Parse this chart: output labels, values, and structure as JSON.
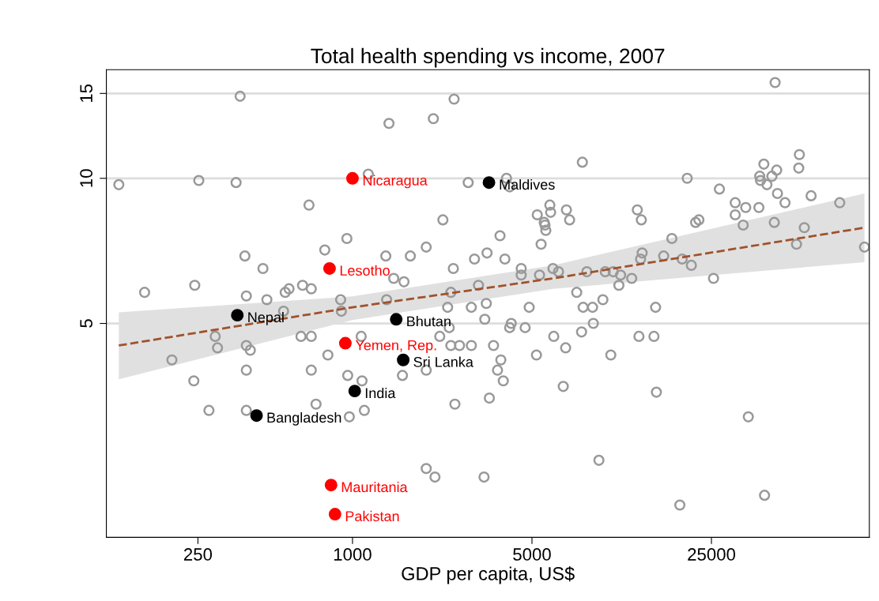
{
  "chart_data": {
    "type": "scatter",
    "title": "Total health spending vs income, 2007",
    "xlabel": "GDP per capita, US$",
    "log": "xy",
    "xlim": [
      110,
      103000
    ],
    "ylim": [
      1.8,
      16.8
    ],
    "xticks": [
      250,
      1000,
      5000,
      25000
    ],
    "yticks": [
      5,
      10,
      15
    ],
    "grid": "y",
    "marker": "circle",
    "series": [
      {
        "color": "#999999",
        "x": [
          123,
          155,
          243,
          252,
          198,
          241,
          276,
          292,
          298,
          352,
          365,
          381,
          386,
          386,
          386,
          386,
          400,
          448,
          464,
          539,
          547,
          566,
          630,
          639,
          677,
          691,
          691,
          691,
          721,
          780,
          802,
          899,
          905,
          951,
          958,
          972,
          1081,
          1089,
          1112,
          1152,
          1348,
          1358,
          1387,
          1447,
          1565,
          1587,
          1680,
          1937,
          1937,
          1937,
          2065,
          2095,
          2187,
          2249,
          2347,
          2381,
          2416,
          2416,
          2487,
          2470,
          2505,
          2611,
          2822,
          2903,
          2903,
          2986,
          3095,
          3253,
          3275,
          3320,
          3342,
          3412,
          3542,
          3671,
          3754,
          3782,
          3866,
          3922,
          3980,
          4093,
          4093,
          4152,
          4540,
          4540,
          4703,
          4877,
          5206,
          5243,
          5351,
          5427,
          5581,
          5621,
          5661,
          5870,
          5912,
          6036,
          6079,
          6344,
          6620,
          6762,
          6810,
          7007,
          7468,
          7800,
          7856,
          7912,
          8180,
          8608,
          8669,
          9113,
          9444,
          9647,
          10140,
          10360,
          10900,
          11070,
          12230,
          12860,
          13050,
          13240,
          13330,
          13430,
          14930,
          15150,
          15260,
          16290,
          17530,
          18830,
          19230,
          20120,
          20880,
          21690,
          22340,
          25470,
          26850,
          30940,
          30940,
          33230,
          34000,
          34800,
          38260,
          38540,
          38820,
          40000,
          40250,
          41120,
          43000,
          43930,
          44250,
          44880,
          45190,
          48360,
          53600,
          54700,
          55000,
          57500,
          61100,
          79000,
          98600
        ],
        "values": [
          9.7,
          5.8,
          6.0,
          9.9,
          4.2,
          3.8,
          3.3,
          4.7,
          4.45,
          9.8,
          14.8,
          6.9,
          5.7,
          4.5,
          4.0,
          3.3,
          4.4,
          6.5,
          5.6,
          5.3,
          5.8,
          5.9,
          4.7,
          6.0,
          8.8,
          5.9,
          4.7,
          4.0,
          3.4,
          7.1,
          4.3,
          5.6,
          5.3,
          7.5,
          3.9,
          3.2,
          4.7,
          3.8,
          3.3,
          10.2,
          6.9,
          5.6,
          13.0,
          6.2,
          3.9,
          6.1,
          6.9,
          7.2,
          2.5,
          4.0,
          13.3,
          2.4,
          4.7,
          8.2,
          5.4,
          4.9,
          5.8,
          4.5,
          14.6,
          6.5,
          3.4,
          4.5,
          9.8,
          5.4,
          4.5,
          6.8,
          6.0,
          2.4,
          5.1,
          5.5,
          7.0,
          3.5,
          4.5,
          4.0,
          7.6,
          4.2,
          3.8,
          6.8,
          10.0,
          9.6,
          4.9,
          5.0,
          6.5,
          6.3,
          4.9,
          5.4,
          4.3,
          8.4,
          6.3,
          7.3,
          8.1,
          8.0,
          7.8,
          8.8,
          8.5,
          6.5,
          4.7,
          6.4,
          3.7,
          4.45,
          8.6,
          8.2,
          5.8,
          4.8,
          10.8,
          5.4,
          6.4,
          5.4,
          5.0,
          2.6,
          5.6,
          6.4,
          4.3,
          6.4,
          6.0,
          6.3,
          6.2,
          8.6,
          4.7,
          6.8,
          8.2,
          7.0,
          4.7,
          5.4,
          3.6,
          6.9,
          7.5,
          2.1,
          6.8,
          10.0,
          6.6,
          8.1,
          8.2,
          6.2,
          9.5,
          8.9,
          8.4,
          8.0,
          8.7,
          3.2,
          8.7,
          10.1,
          9.9,
          10.7,
          2.2,
          9.7,
          10.1,
          8.1,
          15.8,
          10.4,
          9.3,
          8.9,
          7.3,
          10.5,
          11.2,
          7.9,
          9.2,
          8.9,
          7.2
        ]
      },
      {
        "color": "#ff0000",
        "x": [
          1000,
          814,
          938,
          825,
          855
        ],
        "values": [
          10.0,
          6.5,
          4.55,
          2.31,
          2.01
        ],
        "value_labels": [
          "Nicaragua",
          "Lesotho",
          "Yemen, Rep.",
          "Mauritania",
          "Pakistan"
        ]
      },
      {
        "color": "#000000",
        "x": [
          3400,
          356,
          1480,
          1576,
          1020,
          423
        ],
        "values": [
          9.8,
          5.2,
          5.1,
          4.2,
          3.62,
          3.22
        ],
        "value_labels": [
          "Maldives",
          "Nepal",
          "Bhutan",
          "Sri Lanka",
          "India",
          "Bangladesh"
        ]
      },
      {
        "type": "line",
        "color": "#a0522d",
        "line_style": "dashed",
        "marker": "none",
        "x": [
          123,
          1000,
          6036,
          98600
        ],
        "values": [
          4.5,
          5.4,
          6.2,
          7.9
        ],
        "lower": [
          3.83,
          5.08,
          5.9,
          6.7
        ],
        "upper": [
          5.27,
          5.69,
          6.6,
          9.3
        ]
      }
    ]
  }
}
